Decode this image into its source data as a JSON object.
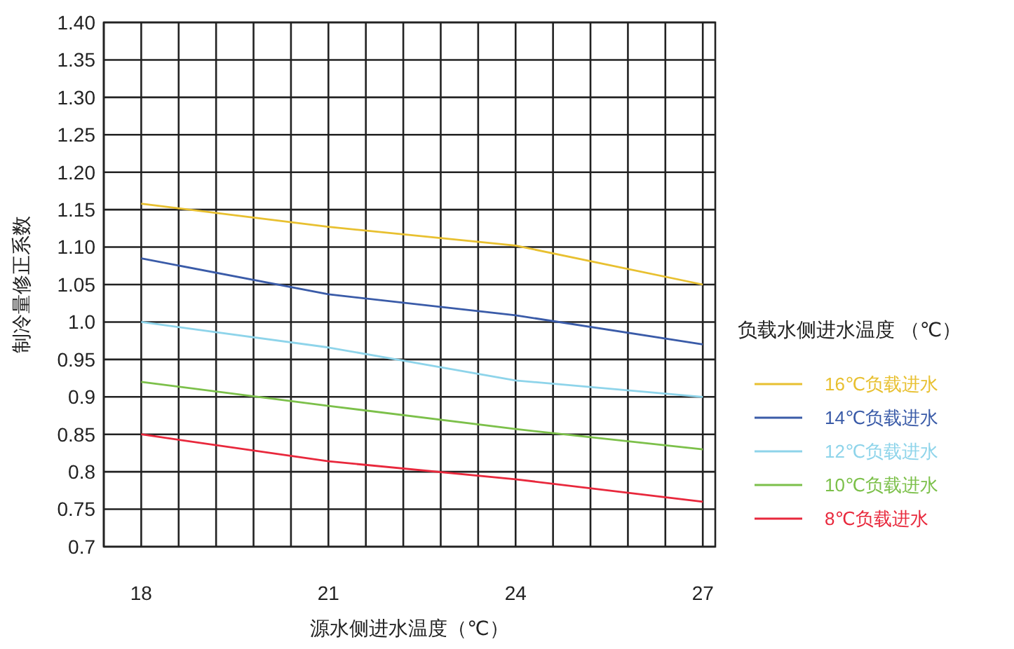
{
  "chart_data": {
    "type": "line",
    "xlabel": "源水侧进水温度（℃）",
    "ylabel": "制冷量修正系数",
    "legend_title": "负载水侧进水温度 （℃）",
    "x": [
      18,
      21,
      24,
      27
    ],
    "series": [
      {
        "name": "16℃负载进水",
        "color": "#e8c030",
        "values": [
          1.158,
          1.127,
          1.102,
          1.05
        ]
      },
      {
        "name": "14℃负载进水",
        "color": "#3a5ba8",
        "values": [
          1.085,
          1.037,
          1.009,
          0.97
        ]
      },
      {
        "name": "12℃负载进水",
        "color": "#8ed4ea",
        "values": [
          1.0,
          0.966,
          0.922,
          0.9
        ]
      },
      {
        "name": "10℃负载进水",
        "color": "#7cc04a",
        "values": [
          0.92,
          0.888,
          0.857,
          0.83
        ]
      },
      {
        "name": "8℃负载进水",
        "color": "#e8283c",
        "values": [
          0.85,
          0.814,
          0.79,
          0.76
        ]
      }
    ],
    "xlim": [
      17.4,
      27.2
    ],
    "xticks": [
      {
        "value": 17.4,
        "label": null
      },
      18,
      {
        "value": 18.6,
        "label": null
      },
      {
        "value": 19.2,
        "label": null
      },
      {
        "value": 19.8,
        "label": null
      },
      {
        "value": 20.4,
        "label": null
      },
      21,
      {
        "value": 21.6,
        "label": null
      },
      {
        "value": 22.2,
        "label": null
      },
      {
        "value": 22.8,
        "label": null
      },
      {
        "value": 23.4,
        "label": null
      },
      24,
      {
        "value": 24.6,
        "label": null
      },
      {
        "value": 25.2,
        "label": null
      },
      {
        "value": 25.8,
        "label": null
      },
      {
        "value": 26.4,
        "label": null
      },
      27
    ],
    "ylim": [
      0.7,
      1.4
    ],
    "yticks": [
      {
        "value": 0.7,
        "label": "0.7"
      },
      0.75,
      {
        "value": 0.8,
        "label": "0.8"
      },
      0.85,
      {
        "value": 0.9,
        "label": "0.9"
      },
      0.95,
      {
        "value": 1.0,
        "label": "1.0"
      },
      1.05,
      {
        "value": 1.1,
        "label": "1.10"
      },
      1.15,
      {
        "value": 1.2,
        "label": "1.20"
      },
      1.25,
      {
        "value": 1.3,
        "label": "1.30"
      },
      1.35,
      {
        "value": 1.4,
        "label": "1.40"
      }
    ],
    "grid": true,
    "legend": "right",
    "marker": "none",
    "line_style": "solid"
  }
}
